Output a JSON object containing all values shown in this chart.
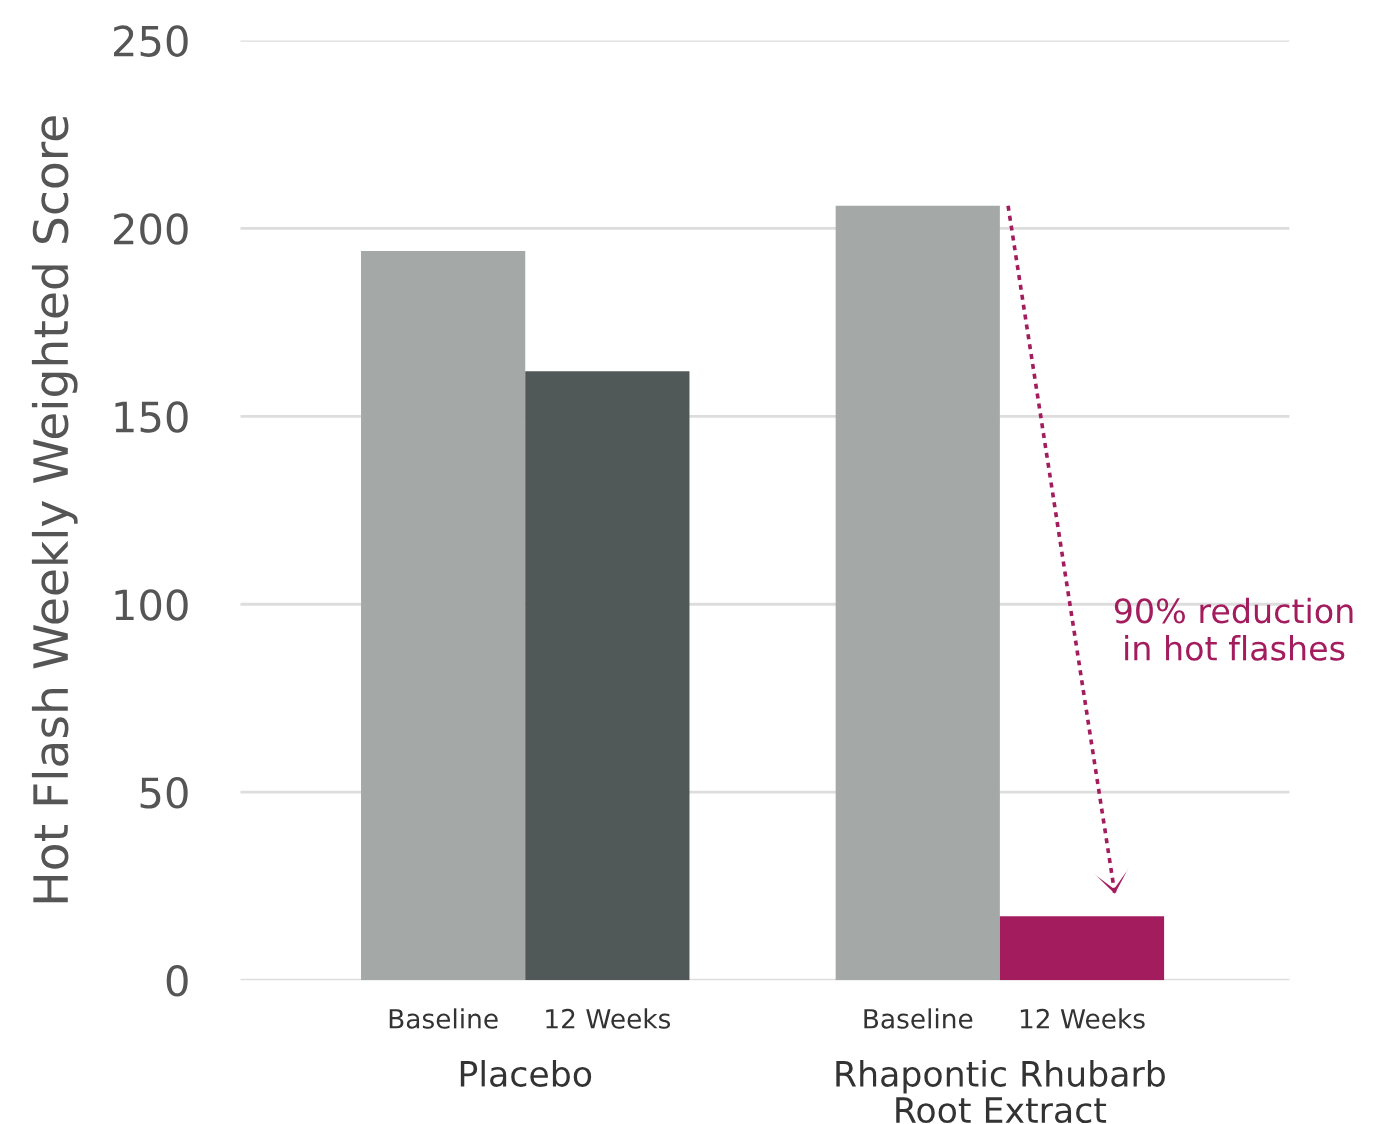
{
  "chart_data": {
    "type": "bar",
    "ylabel": "Hot Flash Weekly Weighted Score",
    "categories": [
      "Placebo",
      "Rhapontic Rhubarb\nRoot Extract"
    ],
    "series": [
      {
        "name": "Baseline",
        "colors": [
          "#a4a9a7",
          "#a4a9a7"
        ],
        "values": [
          194,
          206
        ]
      },
      {
        "name": "12 Weeks",
        "colors": [
          "#505957",
          "#a31c5e"
        ],
        "values": [
          162,
          17
        ]
      }
    ],
    "ylim": [
      0,
      250
    ],
    "yticks": [
      0,
      50,
      100,
      150,
      200,
      250
    ],
    "grid": "y",
    "legend": false,
    "annotations": [
      "90% reduction\nin hot flashes"
    ]
  }
}
